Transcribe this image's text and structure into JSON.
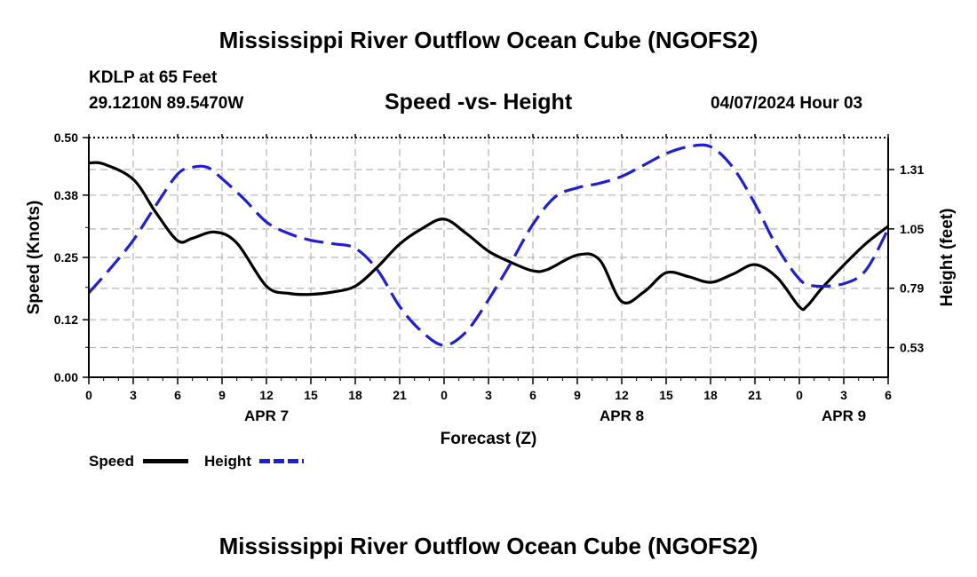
{
  "header": {
    "title": "Mississippi River Outflow Ocean Cube (NGOFS2)",
    "station": "KDLP at 65 Feet",
    "coords": "29.1210N  89.5470W",
    "subtitle": "Speed -vs- Height",
    "datetime": "04/07/2024 Hour 03"
  },
  "legend": {
    "speed_label": "Speed",
    "height_label": "Height"
  },
  "footer": {
    "title": "Mississippi River Outflow Ocean Cube (NGOFS2)"
  },
  "colors": {
    "speed": "#000000",
    "height": "#1f1fd0",
    "grid": "#b4b4b4"
  },
  "chart_data": {
    "type": "line",
    "title": "Speed -vs- Height",
    "xlabel": "Forecast (Z)",
    "ylabel": "Speed (Knots)",
    "y2label": "Height (feet)",
    "xlim": [
      0,
      54
    ],
    "ylim": [
      0,
      0.5
    ],
    "y2lim": [
      0.4,
      1.45
    ],
    "x_ticks": [
      0,
      3,
      6,
      9,
      12,
      15,
      18,
      21,
      24,
      27,
      30,
      33,
      36,
      39,
      42,
      45,
      48,
      51,
      54
    ],
    "x_tick_labels": [
      "0",
      "3",
      "6",
      "9",
      "12",
      "15",
      "18",
      "21",
      "0",
      "3",
      "6",
      "9",
      "12",
      "15",
      "18",
      "21",
      "0",
      "3",
      "6"
    ],
    "date_labels": [
      {
        "x": 12,
        "label": "APR 7"
      },
      {
        "x": 36,
        "label": "APR 8"
      },
      {
        "x": 51,
        "label": "APR 9"
      }
    ],
    "y_ticks": [
      0,
      0.12,
      0.25,
      0.38,
      0.5
    ],
    "y_tick_labels": [
      "0.00",
      "0.12",
      "0.25",
      "0.38",
      "0.50"
    ],
    "y2_ticks": [
      0.53,
      0.79,
      1.05,
      1.31
    ],
    "y2_tick_labels": [
      "0.53",
      "0.79",
      "1.05",
      "1.31"
    ],
    "grid": true,
    "series": [
      {
        "name": "Speed",
        "axis": "left",
        "style": "solid",
        "x": [
          0,
          1,
          3,
          4.5,
          6,
          7,
          8.5,
          10,
          12,
          13.5,
          15,
          16.5,
          18,
          19.5,
          21,
          22.5,
          24,
          25.5,
          27,
          28.5,
          30,
          31,
          33,
          34.5,
          36,
          37.5,
          39,
          40.5,
          42,
          43.5,
          45,
          46.5,
          48,
          48.5,
          49.5,
          51,
          52.5,
          54
        ],
        "values": [
          0.447,
          0.445,
          0.413,
          0.345,
          0.285,
          0.29,
          0.303,
          0.28,
          0.19,
          0.175,
          0.173,
          0.178,
          0.19,
          0.23,
          0.278,
          0.31,
          0.33,
          0.3,
          0.263,
          0.24,
          0.222,
          0.225,
          0.255,
          0.245,
          0.158,
          0.178,
          0.218,
          0.21,
          0.198,
          0.215,
          0.235,
          0.208,
          0.147,
          0.148,
          0.185,
          0.234,
          0.279,
          0.315
        ]
      },
      {
        "name": "Height",
        "axis": "right",
        "style": "dashed",
        "x": [
          0,
          1.5,
          3,
          4.5,
          6,
          7,
          8,
          9,
          10.5,
          12,
          13.5,
          15,
          16.5,
          18,
          19.5,
          21,
          22.5,
          24,
          25.5,
          27,
          28.5,
          30,
          31.5,
          33,
          34.5,
          36,
          37.5,
          39,
          40.5,
          42,
          43.5,
          45,
          46.5,
          48,
          49,
          51,
          52.5,
          54
        ],
        "values": [
          0.77,
          0.88,
          1.0,
          1.15,
          1.29,
          1.32,
          1.32,
          1.27,
          1.18,
          1.08,
          1.03,
          1.0,
          0.985,
          0.965,
          0.87,
          0.71,
          0.6,
          0.54,
          0.6,
          0.74,
          0.9,
          1.07,
          1.19,
          1.23,
          1.25,
          1.28,
          1.33,
          1.38,
          1.41,
          1.41,
          1.32,
          1.16,
          0.97,
          0.83,
          0.8,
          0.81,
          0.87,
          1.05
        ]
      }
    ]
  }
}
